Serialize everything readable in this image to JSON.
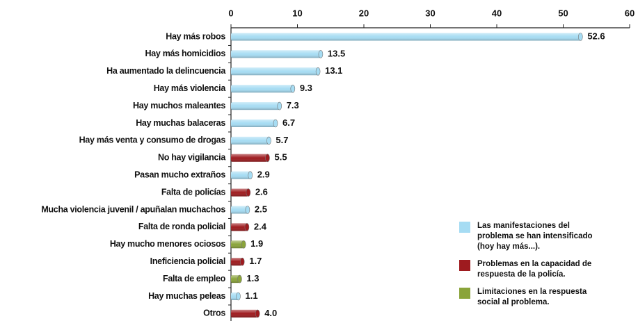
{
  "chart_data": {
    "type": "bar",
    "orientation": "horizontal",
    "categories": [
      "Hay más robos",
      "Hay más homicidios",
      "Ha aumentado la delincuencia",
      "Hay más violencia",
      "Hay muchos maleantes",
      "Hay muchas balaceras",
      "Hay más venta y consumo de drogas",
      "No hay vigilancia",
      "Pasan mucho extraños",
      "Falta de policías",
      "Mucha violencia juvenil / apuñalan muchachos",
      "Falta de ronda policial",
      "Hay mucho menores ociosos",
      "Ineficiencia policial",
      "Falta de empleo",
      "Hay muchas peleas",
      "Otros"
    ],
    "series": [
      {
        "name": "Las manifestaciones del problema se han intensificado (hoy hay más...).",
        "color": "#a6dcf3",
        "values": [
          52.6,
          13.5,
          13.1,
          9.3,
          7.3,
          6.7,
          5.7,
          null,
          2.9,
          null,
          2.5,
          null,
          null,
          null,
          null,
          1.1,
          null
        ]
      },
      {
        "name": "Problemas en la capacidad de respuesta de la policía.",
        "color": "#9e1b1f",
        "values": [
          null,
          null,
          null,
          null,
          null,
          null,
          null,
          5.5,
          null,
          2.6,
          null,
          2.4,
          null,
          1.7,
          null,
          null,
          4.0
        ],
        "value_labels": [
          null,
          null,
          null,
          null,
          null,
          null,
          null,
          "5.5",
          null,
          "2.6",
          null,
          "2.4",
          null,
          "1.7",
          null,
          null,
          "4.0"
        ]
      },
      {
        "name": "Limitaciones en la respuesta social al problema.",
        "color": "#8aa43a",
        "values": [
          null,
          null,
          null,
          null,
          null,
          null,
          null,
          null,
          null,
          null,
          null,
          null,
          1.9,
          null,
          1.3,
          null,
          null
        ]
      }
    ],
    "xlim": [
      0,
      60
    ],
    "xticks": [
      0,
      10,
      20,
      30,
      40,
      50,
      60
    ]
  }
}
